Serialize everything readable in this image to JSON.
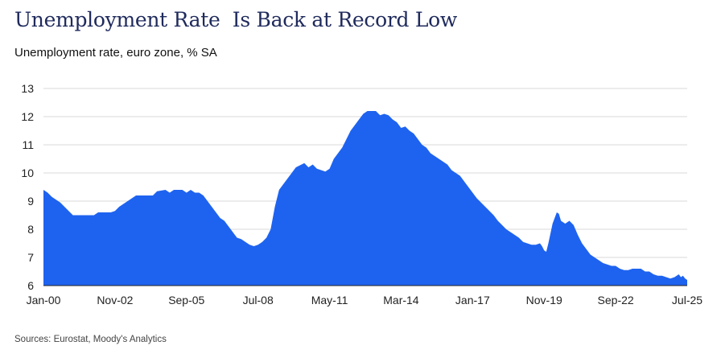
{
  "header": {
    "title": "Unemployment Rate  Is Back at Record Low",
    "subtitle": "Unemployment rate, euro zone, % SA"
  },
  "footer": {
    "source": "Sources: Eurostat, Moody's Analytics"
  },
  "colors": {
    "fill": "#1e63f0",
    "grid": "#d9d9d9",
    "axis": "#222222"
  },
  "chart_data": {
    "type": "area",
    "title": "Unemployment Rate  Is Back at Record Low",
    "subtitle": "Unemployment rate, euro zone, % SA",
    "xlabel": "",
    "ylabel": "",
    "ylim": [
      6,
      13
    ],
    "yticks": [
      6,
      7,
      8,
      9,
      10,
      11,
      12,
      13
    ],
    "xlim": [
      0,
      306
    ],
    "xticks": [
      {
        "label": "Jan-00",
        "x": 0
      },
      {
        "label": "Nov-02",
        "x": 34
      },
      {
        "label": "Sep-05",
        "x": 68
      },
      {
        "label": "Jul-08",
        "x": 102
      },
      {
        "label": "May-11",
        "x": 136
      },
      {
        "label": "Mar-14",
        "x": 170
      },
      {
        "label": "Jan-17",
        "x": 204
      },
      {
        "label": "Nov-19",
        "x": 238
      },
      {
        "label": "Sep-22",
        "x": 272
      },
      {
        "label": "Jul-25",
        "x": 306
      }
    ],
    "grid": true,
    "series": [
      {
        "name": "Unemployment rate",
        "points": [
          [
            0,
            9.4
          ],
          [
            2,
            9.3
          ],
          [
            4,
            9.15
          ],
          [
            6,
            9.05
          ],
          [
            8,
            8.95
          ],
          [
            10,
            8.8
          ],
          [
            12,
            8.65
          ],
          [
            14,
            8.5
          ],
          [
            20,
            8.5
          ],
          [
            24,
            8.5
          ],
          [
            26,
            8.6
          ],
          [
            32,
            8.6
          ],
          [
            34,
            8.65
          ],
          [
            36,
            8.8
          ],
          [
            38,
            8.9
          ],
          [
            40,
            9.0
          ],
          [
            42,
            9.1
          ],
          [
            44,
            9.2
          ],
          [
            52,
            9.2
          ],
          [
            54,
            9.35
          ],
          [
            58,
            9.4
          ],
          [
            60,
            9.3
          ],
          [
            62,
            9.4
          ],
          [
            66,
            9.4
          ],
          [
            68,
            9.3
          ],
          [
            70,
            9.4
          ],
          [
            72,
            9.3
          ],
          [
            74,
            9.3
          ],
          [
            76,
            9.2
          ],
          [
            78,
            9.0
          ],
          [
            80,
            8.8
          ],
          [
            82,
            8.6
          ],
          [
            84,
            8.4
          ],
          [
            86,
            8.3
          ],
          [
            88,
            8.1
          ],
          [
            90,
            7.9
          ],
          [
            92,
            7.7
          ],
          [
            94,
            7.65
          ],
          [
            96,
            7.55
          ],
          [
            98,
            7.45
          ],
          [
            100,
            7.4
          ],
          [
            102,
            7.45
          ],
          [
            104,
            7.55
          ],
          [
            106,
            7.7
          ],
          [
            108,
            8.0
          ],
          [
            110,
            8.8
          ],
          [
            112,
            9.4
          ],
          [
            114,
            9.6
          ],
          [
            116,
            9.8
          ],
          [
            118,
            10.0
          ],
          [
            120,
            10.2
          ],
          [
            124,
            10.35
          ],
          [
            126,
            10.2
          ],
          [
            128,
            10.3
          ],
          [
            130,
            10.15
          ],
          [
            132,
            10.1
          ],
          [
            134,
            10.05
          ],
          [
            136,
            10.15
          ],
          [
            138,
            10.5
          ],
          [
            140,
            10.7
          ],
          [
            142,
            10.9
          ],
          [
            144,
            11.2
          ],
          [
            146,
            11.5
          ],
          [
            148,
            11.7
          ],
          [
            150,
            11.9
          ],
          [
            152,
            12.1
          ],
          [
            154,
            12.2
          ],
          [
            158,
            12.2
          ],
          [
            160,
            12.05
          ],
          [
            162,
            12.1
          ],
          [
            164,
            12.05
          ],
          [
            166,
            11.9
          ],
          [
            168,
            11.8
          ],
          [
            170,
            11.6
          ],
          [
            172,
            11.65
          ],
          [
            174,
            11.5
          ],
          [
            176,
            11.4
          ],
          [
            178,
            11.2
          ],
          [
            180,
            11.0
          ],
          [
            182,
            10.9
          ],
          [
            184,
            10.7
          ],
          [
            186,
            10.6
          ],
          [
            188,
            10.5
          ],
          [
            190,
            10.4
          ],
          [
            192,
            10.3
          ],
          [
            194,
            10.1
          ],
          [
            196,
            10.0
          ],
          [
            198,
            9.9
          ],
          [
            200,
            9.7
          ],
          [
            202,
            9.5
          ],
          [
            204,
            9.3
          ],
          [
            206,
            9.1
          ],
          [
            208,
            8.95
          ],
          [
            210,
            8.8
          ],
          [
            212,
            8.65
          ],
          [
            214,
            8.5
          ],
          [
            216,
            8.3
          ],
          [
            218,
            8.15
          ],
          [
            220,
            8.0
          ],
          [
            222,
            7.9
          ],
          [
            224,
            7.8
          ],
          [
            226,
            7.7
          ],
          [
            228,
            7.55
          ],
          [
            230,
            7.5
          ],
          [
            232,
            7.45
          ],
          [
            234,
            7.45
          ],
          [
            236,
            7.5
          ],
          [
            237,
            7.4
          ],
          [
            238,
            7.25
          ],
          [
            239,
            7.2
          ],
          [
            240,
            7.5
          ],
          [
            242,
            8.2
          ],
          [
            244,
            8.6
          ],
          [
            245,
            8.55
          ],
          [
            246,
            8.3
          ],
          [
            248,
            8.2
          ],
          [
            250,
            8.3
          ],
          [
            252,
            8.15
          ],
          [
            254,
            7.8
          ],
          [
            256,
            7.5
          ],
          [
            258,
            7.3
          ],
          [
            260,
            7.1
          ],
          [
            262,
            7.0
          ],
          [
            264,
            6.9
          ],
          [
            266,
            6.8
          ],
          [
            268,
            6.75
          ],
          [
            270,
            6.7
          ],
          [
            272,
            6.7
          ],
          [
            274,
            6.6
          ],
          [
            276,
            6.55
          ],
          [
            278,
            6.55
          ],
          [
            280,
            6.6
          ],
          [
            284,
            6.6
          ],
          [
            286,
            6.5
          ],
          [
            288,
            6.5
          ],
          [
            290,
            6.4
          ],
          [
            292,
            6.35
          ],
          [
            294,
            6.35
          ],
          [
            296,
            6.3
          ],
          [
            298,
            6.25
          ],
          [
            300,
            6.3
          ],
          [
            302,
            6.4
          ],
          [
            303,
            6.3
          ],
          [
            304,
            6.35
          ],
          [
            305,
            6.25
          ],
          [
            306,
            6.2
          ]
        ]
      }
    ]
  }
}
